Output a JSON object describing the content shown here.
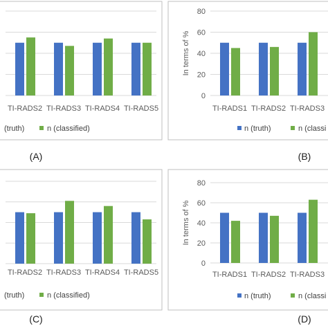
{
  "colors": {
    "truth": "#4472C4",
    "classified": "#70AD47",
    "gridline": "#D9D9D9",
    "frame": "#BFBFBF",
    "text": "#595959"
  },
  "chart_data": [
    {
      "panel": "(A)",
      "type": "bar",
      "categories": [
        "TI-RADS2",
        "TI-RADS3",
        "TI-RADS4",
        "TI-RADS5"
      ],
      "series": [
        {
          "name": "(truth)",
          "values": [
            50,
            50,
            50,
            50
          ]
        },
        {
          "name": "n (classified)",
          "values": [
            55,
            47,
            54,
            50
          ]
        }
      ],
      "ylim": [
        0,
        80
      ],
      "grid": true
    },
    {
      "panel": "(B)",
      "type": "bar",
      "categories": [
        "TI-RADS1",
        "TI-RADS2",
        "TI-RADS3"
      ],
      "series": [
        {
          "name": "n (truth)",
          "values": [
            50,
            50,
            50
          ]
        },
        {
          "name": "n (classi",
          "values": [
            45,
            46,
            60
          ]
        }
      ],
      "ylabel": "In terms of %",
      "yticks": [
        "0",
        "20",
        "40",
        "60",
        "80"
      ],
      "ylim": [
        0,
        80
      ],
      "grid": true
    },
    {
      "panel": "(C)",
      "type": "bar",
      "categories": [
        "TI-RADS2",
        "TI-RADS3",
        "TI-RADS4",
        "TI-RADS5"
      ],
      "series": [
        {
          "name": "(truth)",
          "values": [
            50,
            50,
            50,
            50
          ]
        },
        {
          "name": "n (classified)",
          "values": [
            49,
            61,
            56,
            43
          ]
        }
      ],
      "ylim": [
        0,
        80
      ],
      "grid": true
    },
    {
      "panel": "(D)",
      "type": "bar",
      "categories": [
        "TI-RADS1",
        "TI-RADS2",
        "TI-RADS3"
      ],
      "series": [
        {
          "name": "n (truth)",
          "values": [
            50,
            50,
            50
          ]
        },
        {
          "name": "n (classi",
          "values": [
            42,
            47,
            63
          ]
        }
      ],
      "ylabel": "In terms of %",
      "yticks": [
        "0",
        "20",
        "40",
        "60",
        "80"
      ],
      "ylim": [
        0,
        80
      ],
      "grid": true
    }
  ]
}
